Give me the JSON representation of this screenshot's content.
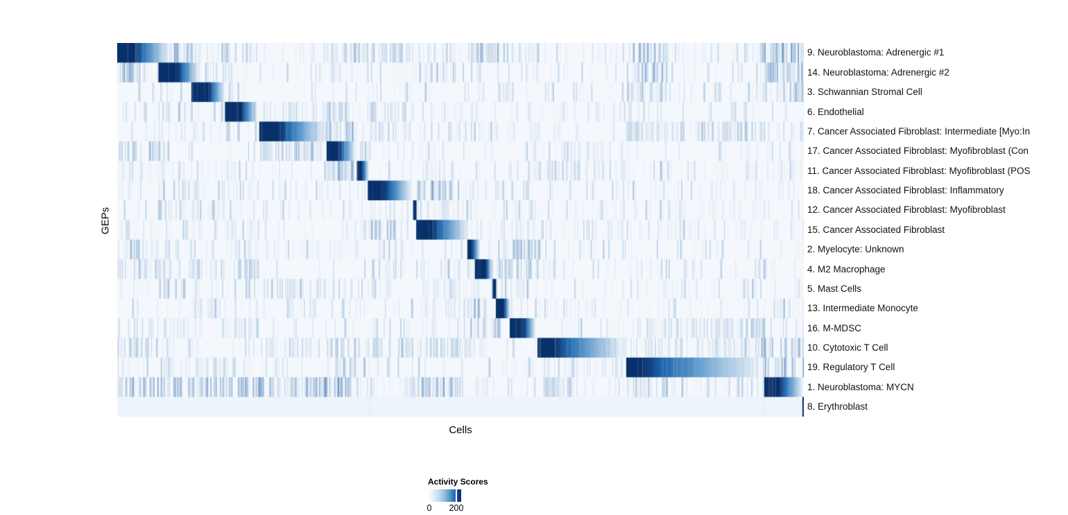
{
  "figure": {
    "y_axis_label": "GEPs",
    "x_axis_label": "Cells"
  },
  "legend": {
    "title": "Activity Scores",
    "tick_labels": [
      "0",
      "200"
    ],
    "min_value": 0,
    "tick_value": 200
  },
  "chart_data": {
    "type": "heatmap",
    "xlabel": "Cells",
    "ylabel": "GEPs",
    "legend_title": "Activity Scores",
    "colorbar": {
      "min": 0,
      "tick": 200,
      "min_color": "#ffffff",
      "max_color": "#08306b",
      "tick_position_frac": 0.85
    },
    "x_axis_note": "individual cells, grouped by assigned GEP, no tick labels",
    "colors": {
      "navy": "#08306b",
      "stripe": "#3272b5",
      "bg": "#f4f8fc",
      "last_row_bg": "#eef4fb"
    },
    "rows": [
      {
        "label": "9. Neuroblastoma: Adrenergic #1",
        "block": [
          0.0,
          0.027,
          0.078
        ]
      },
      {
        "label": "14. Neuroblastoma: Adrenergic #2",
        "block": [
          0.06,
          0.089,
          0.12
        ]
      },
      {
        "label": "3. Schwannian Stromal Cell",
        "block": [
          0.108,
          0.134,
          0.158
        ]
      },
      {
        "label": "6. Endothelial",
        "block": [
          0.157,
          0.182,
          0.205
        ]
      },
      {
        "label": "7. Cancer Associated Fibroblast: Intermediate [Myo:In",
        "block": [
          0.207,
          0.238,
          0.304
        ]
      },
      {
        "label": "17. Cancer Associated Fibroblast: Myofibroblast (Con",
        "block": [
          0.305,
          0.324,
          0.348
        ]
      },
      {
        "label": "11. Cancer Associated Fibroblast: Myofibroblast (POS",
        "block": [
          0.349,
          0.357,
          0.367
        ]
      },
      {
        "label": "18. Cancer Associated Fibroblast: Inflammatory",
        "block": [
          0.365,
          0.39,
          0.431
        ]
      },
      {
        "label": "12. Cancer Associated Fibroblast: Myofibroblast",
        "block": [
          0.431,
          0.4345,
          0.436
        ]
      },
      {
        "label": "15. Cancer Associated Fibroblast",
        "block": [
          0.4355,
          0.46,
          0.513
        ]
      },
      {
        "label": "2. Myelocyte: Unknown",
        "block": [
          0.51,
          0.517,
          0.529
        ]
      },
      {
        "label": "4. M2 Macrophage",
        "block": [
          0.521,
          0.538,
          0.546
        ]
      },
      {
        "label": "5. Mast Cells",
        "block": [
          0.547,
          0.5505,
          0.552
        ]
      },
      {
        "label": "13. Intermediate Monocyte",
        "block": [
          0.5515,
          0.564,
          0.572
        ]
      },
      {
        "label": "16. M-MDSC",
        "block": [
          0.5717,
          0.593,
          0.6101
        ]
      },
      {
        "label": "10. Cytotoxic T Cell",
        "block": [
          0.6121,
          0.638,
          0.7414
        ]
      },
      {
        "label": "19. Regulatory T Cell",
        "block": [
          0.7414,
          0.765,
          0.9434
        ]
      },
      {
        "label": "1. Neuroblastoma: MYCN",
        "block": [
          0.9424,
          0.966,
          1.0
        ]
      },
      {
        "label": "8. Erythroblast",
        "block": [
          0.998,
          1.0,
          1.0
        ]
      }
    ],
    "highlights": [
      {
        "row": 0,
        "range": [
          0.055,
          0.125
        ],
        "i": 0.45
      },
      {
        "row": 0,
        "range": [
          0.15,
          0.205
        ],
        "i": 0.3
      },
      {
        "row": 0,
        "range": [
          0.3,
          0.44
        ],
        "i": 0.22
      },
      {
        "row": 0,
        "range": [
          0.51,
          0.615
        ],
        "i": 0.28
      },
      {
        "row": 0,
        "range": [
          0.74,
          0.8
        ],
        "i": 0.45
      },
      {
        "row": 0,
        "range": [
          0.93,
          1.0
        ],
        "i": 0.5
      },
      {
        "row": 1,
        "range": [
          0.0,
          0.045
        ],
        "i": 0.4
      },
      {
        "row": 1,
        "range": [
          0.74,
          0.8
        ],
        "i": 0.38
      },
      {
        "row": 1,
        "range": [
          0.93,
          1.0
        ],
        "i": 0.32
      },
      {
        "row": 2,
        "range": [
          0.74,
          0.8
        ],
        "i": 0.25
      },
      {
        "row": 2,
        "range": [
          0.93,
          1.0
        ],
        "i": 0.28
      },
      {
        "row": 3,
        "range": [
          0.3,
          0.345
        ],
        "i": 0.25
      },
      {
        "row": 4,
        "range": [
          0.3,
          0.345
        ],
        "i": 0.3
      },
      {
        "row": 5,
        "range": [
          0.207,
          0.3
        ],
        "i": 0.25
      },
      {
        "row": 6,
        "range": [
          0.3,
          0.345
        ],
        "i": 0.35
      },
      {
        "row": 7,
        "range": [
          0.435,
          0.5
        ],
        "i": 0.4
      },
      {
        "row": 9,
        "range": [
          0.365,
          0.41
        ],
        "i": 0.32
      },
      {
        "row": 10,
        "range": [
          0.552,
          0.615
        ],
        "i": 0.38
      },
      {
        "row": 11,
        "range": [
          0.552,
          0.615
        ],
        "i": 0.33
      },
      {
        "row": 13,
        "range": [
          0.51,
          0.55
        ],
        "i": 0.28
      },
      {
        "row": 14,
        "range": [
          0.51,
          0.56
        ],
        "i": 0.28
      },
      {
        "row": 15,
        "range": [
          0.93,
          1.0
        ],
        "i": 0.38
      },
      {
        "row": 16,
        "range": [
          0.93,
          1.0
        ],
        "i": 0.42
      },
      {
        "row": 17,
        "range": [
          0.0,
          0.34
        ],
        "i": 0.5
      },
      {
        "row": 17,
        "range": [
          0.435,
          0.505
        ],
        "i": 0.3
      },
      {
        "row": 17,
        "range": [
          0.615,
          0.66
        ],
        "i": 0.25
      }
    ]
  }
}
